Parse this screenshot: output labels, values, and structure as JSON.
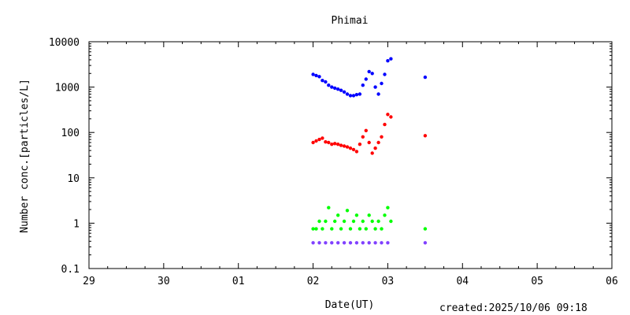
{
  "footer": {
    "created": "created:2025/10/06 09:18"
  },
  "chart_data": {
    "type": "scatter",
    "title": "Phimai",
    "xlabel": "Date(UT)",
    "ylabel": "Number conc.[particles/L]",
    "y_scale": "log",
    "ylim": [
      0.1,
      10000
    ],
    "xlim": [
      "29",
      "06"
    ],
    "grid": false,
    "x_ticks": [
      "29",
      "30",
      "01",
      "02",
      "03",
      "04",
      "05",
      "06"
    ],
    "y_ticks": [
      "0.1",
      "1",
      "10",
      "100",
      "1000",
      "10000"
    ],
    "colors": {
      "blue": "#0000ff",
      "red": "#ff0000",
      "green": "#00ff00",
      "purple": "#8040ff"
    },
    "series": [
      {
        "color": "blue",
        "points": [
          [
            "02 00:00",
            1900
          ],
          [
            "02 01:00",
            1800
          ],
          [
            "02 02:00",
            1700
          ],
          [
            "02 03:00",
            1400
          ],
          [
            "02 04:00",
            1300
          ],
          [
            "02 05:00",
            1100
          ],
          [
            "02 06:00",
            1000
          ],
          [
            "02 07:00",
            950
          ],
          [
            "02 08:00",
            900
          ],
          [
            "02 09:00",
            850
          ],
          [
            "02 10:00",
            780
          ],
          [
            "02 11:00",
            700
          ],
          [
            "02 12:00",
            650
          ],
          [
            "02 13:00",
            650
          ],
          [
            "02 14:00",
            680
          ],
          [
            "02 15:00",
            700
          ],
          [
            "02 16:00",
            1100
          ],
          [
            "02 17:00",
            1500
          ],
          [
            "02 18:00",
            2200
          ],
          [
            "02 19:00",
            2000
          ],
          [
            "02 20:00",
            1000
          ],
          [
            "02 21:00",
            700
          ],
          [
            "02 22:00",
            1200
          ],
          [
            "02 23:00",
            1900
          ],
          [
            "03 00:00",
            3800
          ],
          [
            "03 01:00",
            4200
          ],
          [
            "03 12:00",
            1650
          ]
        ]
      },
      {
        "color": "red",
        "points": [
          [
            "02 00:00",
            60
          ],
          [
            "02 01:00",
            65
          ],
          [
            "02 02:00",
            70
          ],
          [
            "02 03:00",
            75
          ],
          [
            "02 04:00",
            62
          ],
          [
            "02 05:00",
            60
          ],
          [
            "02 06:00",
            55
          ],
          [
            "02 07:00",
            57
          ],
          [
            "02 08:00",
            55
          ],
          [
            "02 09:00",
            52
          ],
          [
            "02 10:00",
            50
          ],
          [
            "02 11:00",
            48
          ],
          [
            "02 12:00",
            45
          ],
          [
            "02 13:00",
            42
          ],
          [
            "02 14:00",
            38
          ],
          [
            "02 15:00",
            55
          ],
          [
            "02 16:00",
            80
          ],
          [
            "02 17:00",
            110
          ],
          [
            "02 18:00",
            60
          ],
          [
            "02 19:00",
            35
          ],
          [
            "02 20:00",
            45
          ],
          [
            "02 21:00",
            60
          ],
          [
            "02 22:00",
            80
          ],
          [
            "02 23:00",
            150
          ],
          [
            "03 00:00",
            250
          ],
          [
            "03 01:00",
            220
          ],
          [
            "03 12:00",
            85
          ]
        ]
      },
      {
        "color": "green",
        "points": [
          [
            "02 00:00",
            0.75
          ],
          [
            "02 01:00",
            0.75
          ],
          [
            "02 02:00",
            1.1
          ],
          [
            "02 03:00",
            0.75
          ],
          [
            "02 04:00",
            1.1
          ],
          [
            "02 05:00",
            2.2
          ],
          [
            "02 06:00",
            0.75
          ],
          [
            "02 07:00",
            1.1
          ],
          [
            "02 08:00",
            1.5
          ],
          [
            "02 09:00",
            0.75
          ],
          [
            "02 10:00",
            1.1
          ],
          [
            "02 11:00",
            1.9
          ],
          [
            "02 12:00",
            0.75
          ],
          [
            "02 13:00",
            1.1
          ],
          [
            "02 14:00",
            1.5
          ],
          [
            "02 15:00",
            0.75
          ],
          [
            "02 16:00",
            1.1
          ],
          [
            "02 17:00",
            0.75
          ],
          [
            "02 18:00",
            1.5
          ],
          [
            "02 19:00",
            1.1
          ],
          [
            "02 20:00",
            0.75
          ],
          [
            "02 21:00",
            1.1
          ],
          [
            "02 22:00",
            0.75
          ],
          [
            "02 23:00",
            1.5
          ],
          [
            "03 00:00",
            2.2
          ],
          [
            "03 01:00",
            1.1
          ],
          [
            "03 12:00",
            0.75
          ]
        ]
      },
      {
        "color": "purple",
        "points": [
          [
            "02 00:00",
            0.37
          ],
          [
            "02 02:00",
            0.37
          ],
          [
            "02 04:00",
            0.37
          ],
          [
            "02 06:00",
            0.37
          ],
          [
            "02 08:00",
            0.37
          ],
          [
            "02 10:00",
            0.37
          ],
          [
            "02 12:00",
            0.37
          ],
          [
            "02 14:00",
            0.37
          ],
          [
            "02 16:00",
            0.37
          ],
          [
            "02 18:00",
            0.37
          ],
          [
            "02 20:00",
            0.37
          ],
          [
            "02 22:00",
            0.37
          ],
          [
            "03 00:00",
            0.37
          ],
          [
            "03 12:00",
            0.37
          ]
        ]
      }
    ]
  }
}
